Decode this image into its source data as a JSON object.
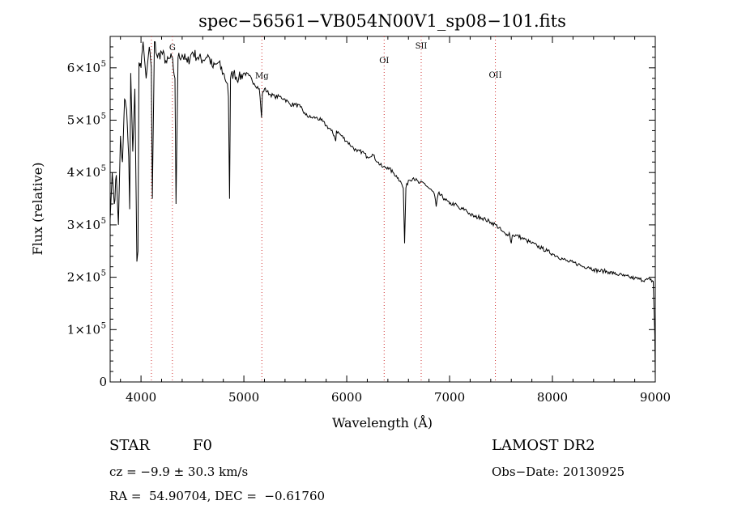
{
  "chart_data": {
    "type": "line",
    "title": "spec−56561−VB054N00V1_sp08−101.fits",
    "xlabel": "Wavelength (Å)",
    "ylabel": "Flux (relative)",
    "xlim": [
      3700,
      9000
    ],
    "ylim": [
      0,
      660000
    ],
    "xticks": [
      {
        "value": 4000,
        "label": "4000"
      },
      {
        "value": 5000,
        "label": "5000"
      },
      {
        "value": 6000,
        "label": "6000"
      },
      {
        "value": 7000,
        "label": "7000"
      },
      {
        "value": 8000,
        "label": "8000"
      },
      {
        "value": 9000,
        "label": "9000"
      }
    ],
    "yticks": [
      {
        "value": 0,
        "mant": "0",
        "exp": ""
      },
      {
        "value": 100000,
        "mant": "1×10",
        "exp": "5"
      },
      {
        "value": 200000,
        "mant": "2×10",
        "exp": "5"
      },
      {
        "value": 300000,
        "mant": "3×10",
        "exp": "5"
      },
      {
        "value": 400000,
        "mant": "4×10",
        "exp": "5"
      },
      {
        "value": 500000,
        "mant": "5×10",
        "exp": "5"
      },
      {
        "value": 600000,
        "mant": "6×10",
        "exp": "5"
      }
    ],
    "series": [
      {
        "x": [
          3700,
          3720,
          3740,
          3760,
          3780,
          3800,
          3820,
          3840,
          3860,
          3880,
          3890,
          3900,
          3920,
          3940,
          3960,
          3970,
          3980,
          4000,
          4020,
          4050,
          4080,
          4100,
          4110,
          4130,
          4160,
          4200,
          4250,
          4300,
          4330,
          4340,
          4360,
          4400,
          4450,
          4500,
          4550,
          4600,
          4650,
          4700,
          4750,
          4800,
          4840,
          4850,
          4861,
          4870,
          4900,
          4950,
          5000,
          5050,
          5100,
          5150,
          5172,
          5180,
          5200,
          5250,
          5300,
          5350,
          5400,
          5450,
          5500,
          5550,
          5600,
          5650,
          5700,
          5750,
          5800,
          5850,
          5880,
          5893,
          5900,
          5950,
          6000,
          6050,
          6100,
          6150,
          6200,
          6250,
          6300,
          6350,
          6400,
          6450,
          6500,
          6530,
          6550,
          6563,
          6575,
          6600,
          6650,
          6700,
          6750,
          6800,
          6850,
          6870,
          6880,
          6890,
          6950,
          7000,
          7050,
          7100,
          7150,
          7200,
          7250,
          7300,
          7350,
          7400,
          7450,
          7500,
          7550,
          7580,
          7600,
          7610,
          7650,
          7700,
          7750,
          7800,
          7850,
          7900,
          7950,
          8000,
          8050,
          8100,
          8150,
          8200,
          8250,
          8300,
          8350,
          8400,
          8450,
          8500,
          8550,
          8600,
          8650,
          8700,
          8750,
          8800,
          8850,
          8900,
          8950,
          8980,
          8995,
          9000
        ],
        "y": [
          310000,
          400000,
          340000,
          395000,
          300000,
          470000,
          420000,
          540000,
          520000,
          430000,
          330000,
          590000,
          440000,
          560000,
          230000,
          250000,
          610000,
          600000,
          650000,
          580000,
          640000,
          600000,
          350000,
          650000,
          620000,
          630000,
          610000,
          620000,
          580000,
          340000,
          620000,
          625000,
          610000,
          630000,
          620000,
          615000,
          625000,
          600000,
          610000,
          590000,
          570000,
          545000,
          350000,
          580000,
          590000,
          580000,
          590000,
          585000,
          570000,
          560000,
          505000,
          550000,
          560000,
          550000,
          545000,
          545000,
          540000,
          530000,
          530000,
          525000,
          510000,
          505000,
          505000,
          500000,
          490000,
          480000,
          470000,
          460000,
          480000,
          470000,
          460000,
          450000,
          440000,
          440000,
          430000,
          435000,
          420000,
          410000,
          410000,
          400000,
          390000,
          380000,
          370000,
          265000,
          370000,
          385000,
          390000,
          380000,
          380000,
          370000,
          360000,
          335000,
          350000,
          360000,
          350000,
          340000,
          340000,
          330000,
          330000,
          320000,
          315000,
          315000,
          310000,
          305000,
          300000,
          290000,
          280000,
          285000,
          265000,
          280000,
          280000,
          275000,
          270000,
          265000,
          260000,
          255000,
          250000,
          245000,
          240000,
          235000,
          230000,
          228000,
          225000,
          220000,
          220000,
          215000,
          212000,
          212000,
          210000,
          207000,
          205000,
          202000,
          200000,
          198000,
          196000,
          195000,
          195000,
          192000,
          90000,
          5000
        ]
      }
    ],
    "line_markers": [
      {
        "label": "",
        "x": 4101
      },
      {
        "label": "G",
        "x": 4305
      },
      {
        "label": "Mg",
        "x": 5175
      },
      {
        "label": "OI",
        "x": 6364
      },
      {
        "label": "SII",
        "x": 6724
      },
      {
        "label": "OII",
        "x": 7445
      }
    ]
  },
  "info": {
    "class_label": "STAR",
    "subclass": "F0",
    "survey": "LAMOST DR2",
    "cz": "cz = −9.9 ± 30.3 km/s",
    "obs_date": "Obs−Date: 20130925",
    "coords": "RA =  54.90704, DEC =  −0.61760"
  }
}
